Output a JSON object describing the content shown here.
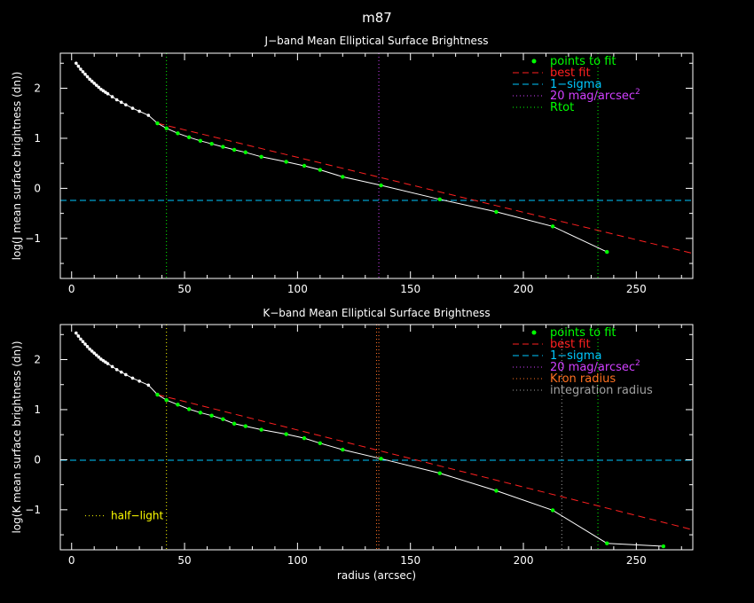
{
  "page_title": "m87",
  "colors": {
    "background": "#000000",
    "axis": "#ffffff",
    "fit_points": "#00ff00",
    "profile": "#ffffff",
    "best_fit": "#ff2020",
    "one_sigma": "#00c8ff",
    "mag20": "#d040ff",
    "rtot": "#00ff00",
    "kron": "#ff7020",
    "integration": "#a0a0a0",
    "half_light": "#ffff00"
  },
  "chart_data": [
    {
      "type": "line",
      "title": "J−band Mean Elliptical Surface Brightness",
      "xlabel": "",
      "ylabel": "log(J mean surface brightness (dn))",
      "xlim": [
        -5,
        275
      ],
      "ylim": [
        -1.8,
        2.7
      ],
      "xticks": [
        0,
        50,
        100,
        150,
        200,
        250
      ],
      "yticks": [
        -1,
        0,
        1,
        2
      ],
      "legend": [
        "points to fit",
        "best fit",
        "1−sigma",
        "20 mag/arcsec",
        "Rtot"
      ],
      "legend_superscript": "2",
      "profile": {
        "x": [
          2,
          3,
          4,
          5,
          6,
          7,
          8,
          9,
          10,
          11,
          12,
          13,
          14,
          15,
          16,
          18,
          20,
          22,
          24,
          27,
          30,
          34,
          38,
          42,
          47,
          52,
          57,
          62,
          67,
          72,
          77,
          84,
          95,
          103,
          110,
          120,
          137,
          163,
          188,
          213,
          237
        ],
        "y": [
          2.5,
          2.44,
          2.38,
          2.33,
          2.28,
          2.23,
          2.18,
          2.14,
          2.1,
          2.06,
          2.02,
          1.98,
          1.95,
          1.92,
          1.89,
          1.83,
          1.77,
          1.72,
          1.67,
          1.6,
          1.54,
          1.46,
          1.3,
          1.2,
          1.1,
          1.02,
          0.95,
          0.89,
          0.83,
          0.77,
          0.72,
          0.63,
          0.53,
          0.45,
          0.37,
          0.23,
          0.06,
          -0.22,
          -0.47,
          -0.76,
          -1.27
        ]
      },
      "fit_points": {
        "x": [
          38,
          42,
          47,
          52,
          57,
          62,
          67,
          72,
          77,
          84,
          95,
          103,
          110,
          120,
          137,
          163,
          188,
          213,
          237
        ],
        "y": [
          1.3,
          1.2,
          1.1,
          1.02,
          0.95,
          0.89,
          0.83,
          0.77,
          0.72,
          0.63,
          0.53,
          0.45,
          0.37,
          0.23,
          0.06,
          -0.22,
          -0.47,
          -0.76,
          -1.27
        ]
      },
      "best_fit": {
        "x": [
          38,
          275
        ],
        "y": [
          1.3,
          -1.3
        ]
      },
      "one_sigma": -0.24,
      "mag20": [
        136
      ],
      "rtot": [
        42,
        233
      ]
    },
    {
      "type": "line",
      "title": "K−band Mean Elliptical Surface Brightness",
      "xlabel": "radius (arcsec)",
      "ylabel": "log(K mean surface brightness (dn))",
      "xlim": [
        -5,
        275
      ],
      "ylim": [
        -1.8,
        2.7
      ],
      "xticks": [
        0,
        50,
        100,
        150,
        200,
        250
      ],
      "yticks": [
        -1,
        0,
        1,
        2
      ],
      "legend": [
        "points to fit",
        "best fit",
        "1−sigma",
        "20 mag/arcsec",
        "Kron radius",
        "integration radius"
      ],
      "legend_superscript": "2",
      "half_light_label": "half−light",
      "profile": {
        "x": [
          2,
          3,
          4,
          5,
          6,
          7,
          8,
          9,
          10,
          11,
          12,
          13,
          14,
          15,
          16,
          18,
          20,
          22,
          24,
          27,
          30,
          34,
          38,
          42,
          47,
          52,
          57,
          62,
          67,
          72,
          77,
          84,
          95,
          103,
          110,
          120,
          137,
          163,
          188,
          213,
          237,
          262
        ],
        "y": [
          2.53,
          2.47,
          2.41,
          2.36,
          2.31,
          2.26,
          2.21,
          2.17,
          2.13,
          2.09,
          2.05,
          2.01,
          1.98,
          1.95,
          1.92,
          1.86,
          1.8,
          1.75,
          1.7,
          1.63,
          1.57,
          1.49,
          1.3,
          1.19,
          1.1,
          1.01,
          0.94,
          0.88,
          0.81,
          0.72,
          0.67,
          0.6,
          0.51,
          0.43,
          0.33,
          0.2,
          0.02,
          -0.27,
          -0.62,
          -1.01,
          -1.67,
          -1.73
        ]
      },
      "fit_points": {
        "x": [
          38,
          42,
          47,
          52,
          57,
          62,
          67,
          72,
          77,
          84,
          95,
          103,
          110,
          120,
          137,
          163,
          188,
          213,
          237,
          262
        ],
        "y": [
          1.3,
          1.19,
          1.1,
          1.01,
          0.94,
          0.88,
          0.81,
          0.72,
          0.67,
          0.6,
          0.51,
          0.43,
          0.33,
          0.2,
          0.02,
          -0.27,
          -0.62,
          -1.01,
          -1.67,
          -1.73
        ]
      },
      "best_fit": {
        "x": [
          38,
          275
        ],
        "y": [
          1.3,
          -1.4
        ]
      },
      "one_sigma": -0.01,
      "mag20": [
        135,
        136
      ],
      "kron": [
        135,
        136
      ],
      "integration": [
        217
      ],
      "rtot": [
        233
      ],
      "half_light": [
        42
      ]
    }
  ]
}
